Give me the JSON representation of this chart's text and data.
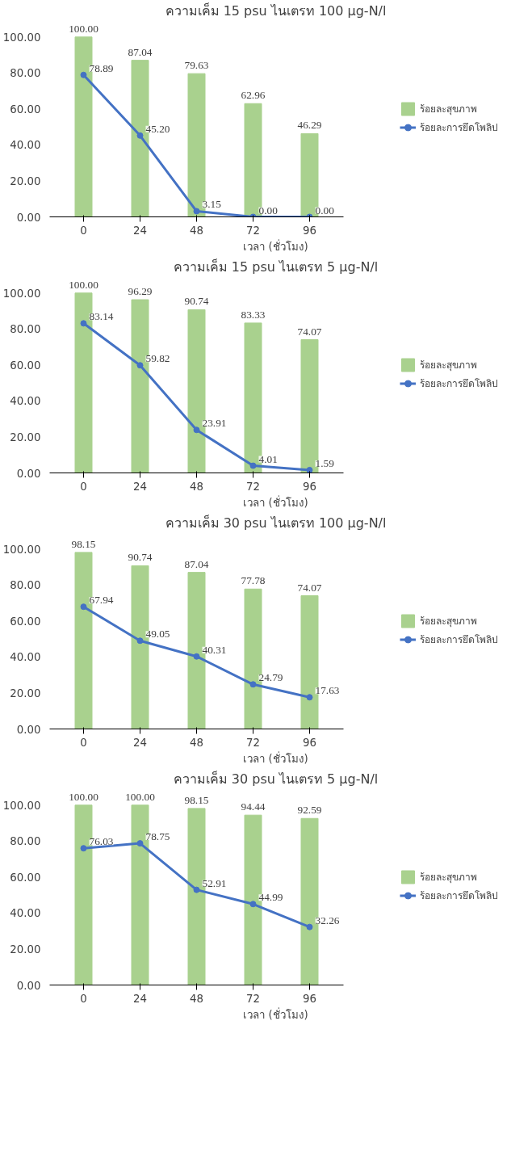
{
  "chart_data": [
    {
      "type": "bar",
      "title": "ความเค็ม 15 psu ไนเตรท 100 µg-N/l",
      "xlabel": "เวลา (ชั่วโมง)",
      "categories": [
        "0",
        "24",
        "48",
        "72",
        "96"
      ],
      "ylim": [
        0,
        100
      ],
      "yticks": [
        {
          "value": 0,
          "label": "0.00"
        },
        {
          "value": 20,
          "label": "20.00"
        },
        {
          "value": 40,
          "label": "40.00"
        },
        {
          "value": 60,
          "label": "60.00"
        },
        {
          "value": 80,
          "label": "80.00"
        },
        {
          "value": 100,
          "label": "100.00"
        }
      ],
      "grid": false,
      "legend": "right",
      "marker": "circle",
      "series": [
        {
          "name": "ร้อยละสุขภาพ",
          "color": "#a9d18e",
          "values": [
            100.0,
            87.04,
            79.63,
            62.96,
            46.29
          ],
          "value_labels": [
            "100.00",
            "87.04",
            "79.63",
            "62.96",
            "46.29"
          ]
        },
        {
          "name": "ร้อยละการยึดโพลิป",
          "type": "line",
          "color": "#4472c4",
          "values": [
            78.89,
            45.2,
            3.15,
            0.0,
            0.0
          ],
          "value_labels": [
            "78.89",
            "45.20",
            "3.15",
            "0.00",
            "0.00"
          ]
        }
      ]
    },
    {
      "type": "bar",
      "title": "ความเค็ม 15 psu ไนเตรท 5 µg-N/l",
      "xlabel": "เวลา (ชั่วโมง)",
      "categories": [
        "0",
        "24",
        "48",
        "72",
        "96"
      ],
      "ylim": [
        0,
        100
      ],
      "yticks": [
        {
          "value": 0,
          "label": "0.00"
        },
        {
          "value": 20,
          "label": "20.00"
        },
        {
          "value": 40,
          "label": "40.00"
        },
        {
          "value": 60,
          "label": "60.00"
        },
        {
          "value": 80,
          "label": "80.00"
        },
        {
          "value": 100,
          "label": "100.00"
        }
      ],
      "grid": false,
      "legend": "right",
      "marker": "circle",
      "series": [
        {
          "name": "ร้อยละสุขภาพ",
          "color": "#a9d18e",
          "values": [
            100.0,
            96.29,
            90.74,
            83.33,
            74.07
          ],
          "value_labels": [
            "100.00",
            "96.29",
            "90.74",
            "83.33",
            "74.07"
          ]
        },
        {
          "name": "ร้อยละการยึดโพลิป",
          "type": "line",
          "color": "#4472c4",
          "values": [
            83.14,
            59.82,
            23.91,
            4.01,
            1.59
          ],
          "value_labels": [
            "83.14",
            "59.82",
            "23.91",
            "4.01",
            "1.59"
          ]
        }
      ]
    },
    {
      "type": "bar",
      "title": "ความเค็ม 30 psu ไนเตรท 100 µg-N/l",
      "xlabel": "เวลา (ชั่วโมง)",
      "categories": [
        "0",
        "24",
        "48",
        "72",
        "96"
      ],
      "ylim": [
        0,
        100
      ],
      "yticks": [
        {
          "value": 0,
          "label": "0.00"
        },
        {
          "value": 20,
          "label": "20.00"
        },
        {
          "value": 40,
          "label": "40.00"
        },
        {
          "value": 60,
          "label": "60.00"
        },
        {
          "value": 80,
          "label": "80.00"
        },
        {
          "value": 100,
          "label": "100.00"
        }
      ],
      "grid": false,
      "legend": "right",
      "marker": "circle",
      "series": [
        {
          "name": "ร้อยละสุขภาพ",
          "color": "#a9d18e",
          "values": [
            98.15,
            90.74,
            87.04,
            77.78,
            74.07
          ],
          "value_labels": [
            "98.15",
            "90.74",
            "87.04",
            "77.78",
            "74.07"
          ]
        },
        {
          "name": "ร้อยละการยึดโพลิป",
          "type": "line",
          "color": "#4472c4",
          "values": [
            67.94,
            49.05,
            40.31,
            24.79,
            17.63
          ],
          "value_labels": [
            "67.94",
            "49.05",
            "40.31",
            "24.79",
            "17.63"
          ]
        }
      ]
    },
    {
      "type": "bar",
      "title": "ความเค็ม 30 psu ไนเตรท 5 µg-N/l",
      "xlabel": "เวลา (ชั่วโมง)",
      "categories": [
        "0",
        "24",
        "48",
        "72",
        "96"
      ],
      "ylim": [
        0,
        100
      ],
      "yticks": [
        {
          "value": 0,
          "label": "0.00"
        },
        {
          "value": 20,
          "label": "20.00"
        },
        {
          "value": 40,
          "label": "40.00"
        },
        {
          "value": 60,
          "label": "60.00"
        },
        {
          "value": 80,
          "label": "80.00"
        },
        {
          "value": 100,
          "label": "100.00"
        }
      ],
      "grid": false,
      "legend": "right",
      "marker": "circle",
      "series": [
        {
          "name": "ร้อยละสุขภาพ",
          "color": "#a9d18e",
          "values": [
            100.0,
            100.0,
            98.15,
            94.44,
            92.59
          ],
          "value_labels": [
            "100.00",
            "100.00",
            "98.15",
            "94.44",
            "92.59"
          ]
        },
        {
          "name": "ร้อยละการยึดโพลิป",
          "type": "line",
          "color": "#4472c4",
          "values": [
            76.03,
            78.75,
            52.91,
            44.99,
            32.26
          ],
          "value_labels": [
            "76.03",
            "78.75",
            "52.91",
            "44.99",
            "32.26"
          ]
        }
      ]
    }
  ]
}
